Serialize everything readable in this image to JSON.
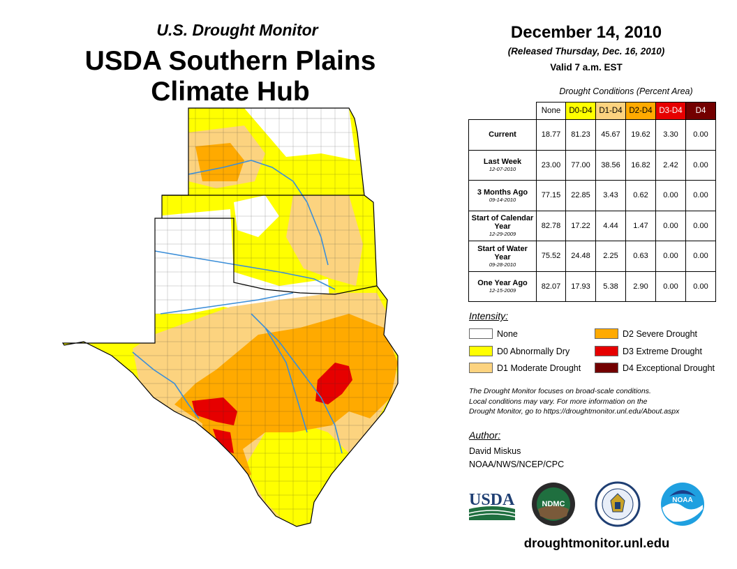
{
  "header": {
    "subtitle": "U.S. Drought Monitor",
    "title_line1": "USDA Southern Plains",
    "title_line2": "Climate Hub"
  },
  "report": {
    "date": "December 14, 2010",
    "released": "(Released Thursday, Dec. 16, 2010)",
    "valid": "Valid 7 a.m. EST"
  },
  "conditions": {
    "title": "Drought Conditions (Percent Area)",
    "columns": [
      "None",
      "D0-D4",
      "D1-D4",
      "D2-D4",
      "D3-D4",
      "D4"
    ],
    "column_colors": [
      "#ffffff",
      "#ffff00",
      "#fcd37f",
      "#ffaa00",
      "#e60000",
      "#730000"
    ],
    "rows": [
      {
        "label": "Current",
        "date": "",
        "values": [
          "18.77",
          "81.23",
          "45.67",
          "19.62",
          "3.30",
          "0.00"
        ]
      },
      {
        "label": "Last Week",
        "date": "12-07-2010",
        "values": [
          "23.00",
          "77.00",
          "38.56",
          "16.82",
          "2.42",
          "0.00"
        ]
      },
      {
        "label": "3 Months Ago",
        "date": "09-14-2010",
        "values": [
          "77.15",
          "22.85",
          "3.43",
          "0.62",
          "0.00",
          "0.00"
        ]
      },
      {
        "label": "Start of Calendar Year",
        "date": "12-29-2009",
        "values": [
          "82.78",
          "17.22",
          "4.44",
          "1.47",
          "0.00",
          "0.00"
        ]
      },
      {
        "label": "Start of Water Year",
        "date": "09-28-2010",
        "values": [
          "75.52",
          "24.48",
          "2.25",
          "0.63",
          "0.00",
          "0.00"
        ]
      },
      {
        "label": "One Year Ago",
        "date": "12-15-2009",
        "values": [
          "82.07",
          "17.93",
          "5.38",
          "2.90",
          "0.00",
          "0.00"
        ]
      }
    ]
  },
  "intensity": {
    "title": "Intensity:",
    "items": [
      {
        "label": "None",
        "color": "#ffffff"
      },
      {
        "label": "D0 Abnormally Dry",
        "color": "#ffff00"
      },
      {
        "label": "D1 Moderate Drought",
        "color": "#fcd37f"
      },
      {
        "label": "D2 Severe Drought",
        "color": "#ffaa00"
      },
      {
        "label": "D3 Extreme Drought",
        "color": "#e60000"
      },
      {
        "label": "D4 Exceptional Drought",
        "color": "#730000"
      }
    ]
  },
  "note": {
    "line1": "The Drought Monitor focuses on broad-scale conditions.",
    "line2": "Local conditions may vary. For more information on the",
    "line3": "Drought Monitor, go to https://droughtmonitor.unl.edu/About.aspx"
  },
  "author": {
    "title": "Author:",
    "name": "David Miskus",
    "org": "NOAA/NWS/NCEP/CPC"
  },
  "logos": {
    "usda": "USDA",
    "ndmc": "NDMC",
    "noaa": "NOAA"
  },
  "footer": {
    "url": "droughtmonitor.unl.edu"
  }
}
